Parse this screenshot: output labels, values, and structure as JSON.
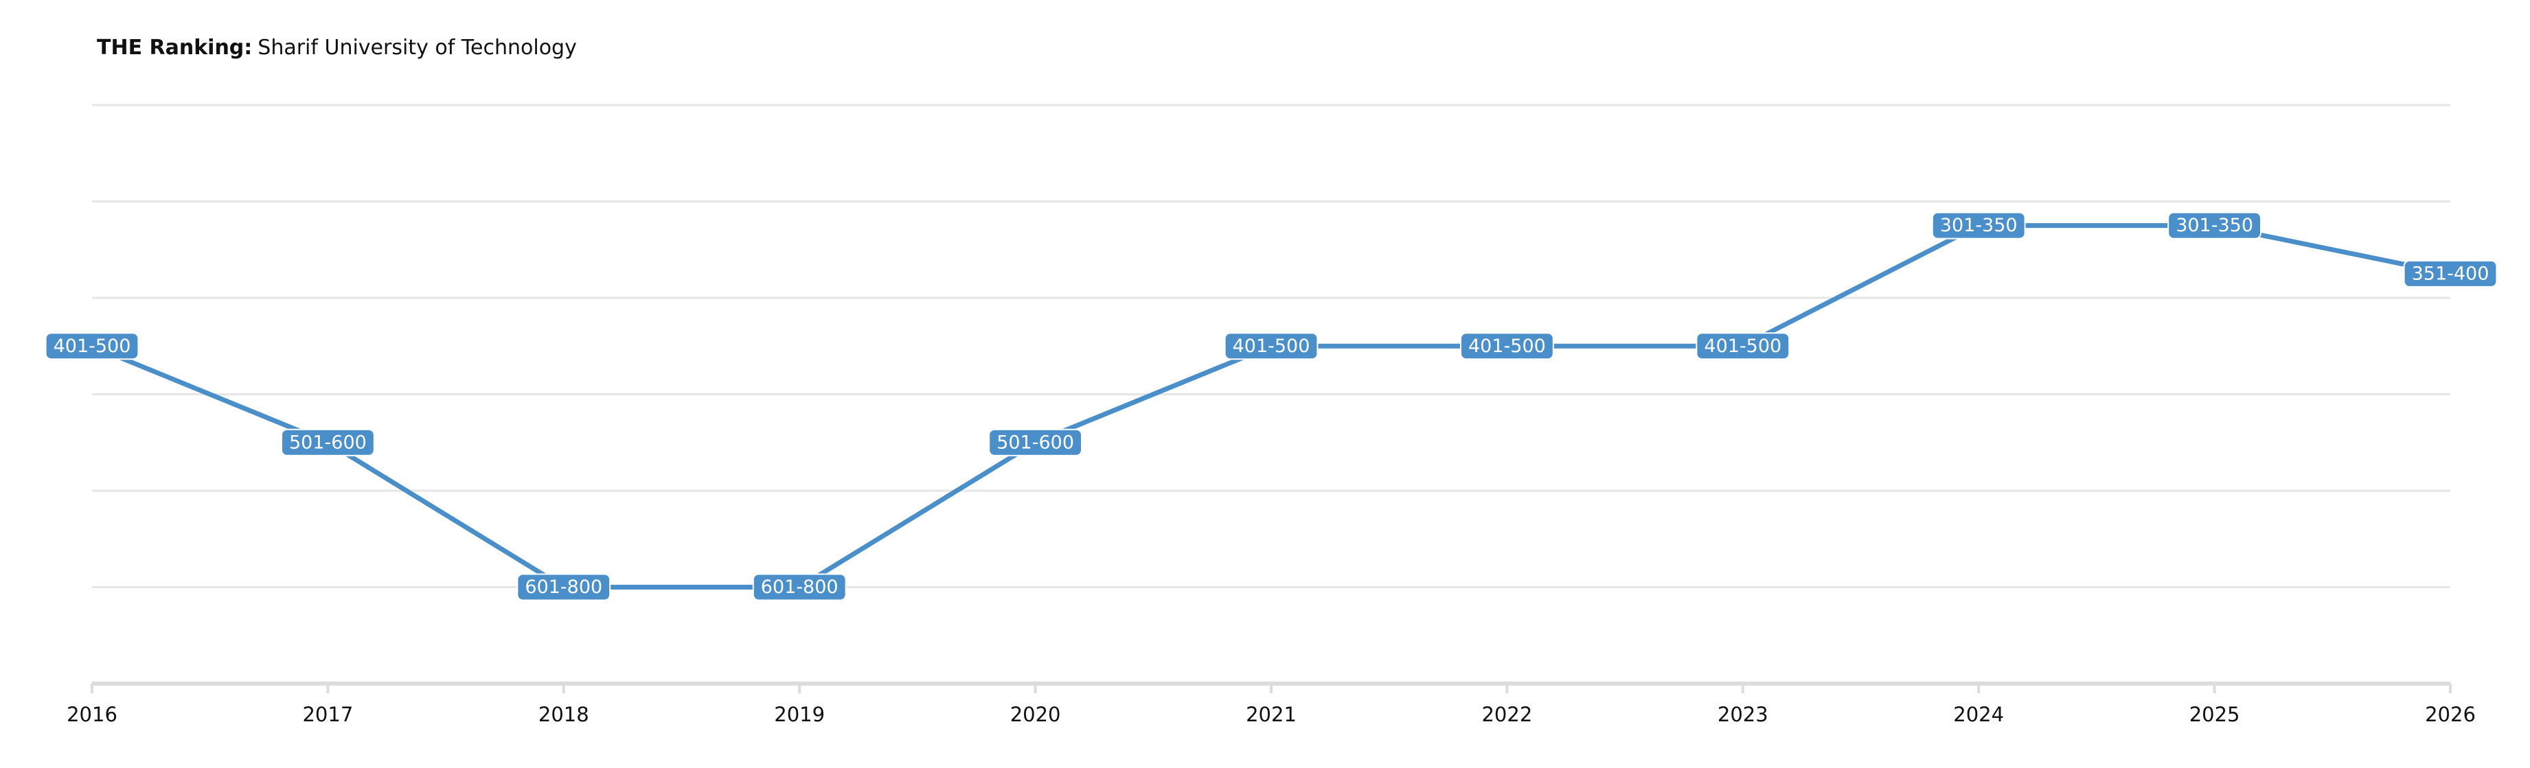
{
  "chart_data": {
    "type": "line",
    "title_prefix": "THE Ranking:",
    "title": "Sharif University of Technology",
    "x": [
      2016,
      2017,
      2018,
      2019,
      2020,
      2021,
      2022,
      2023,
      2024,
      2025,
      2026
    ],
    "series": [
      {
        "color": "#4a8fc9",
        "values": [
          450,
          550,
          700,
          700,
          550,
          450,
          450,
          450,
          325,
          325,
          375
        ],
        "value_labels": [
          "401-500",
          "501-600",
          "601-800",
          "601-800",
          "501-600",
          "401-500",
          "401-500",
          "401-500",
          "301-350",
          "301-350",
          "351-400"
        ]
      }
    ],
    "xlim": [
      2016,
      2026
    ],
    "xticks": [
      2016,
      2017,
      2018,
      2019,
      2020,
      2021,
      2022,
      2023,
      2024,
      2025,
      2026
    ],
    "ylim": [
      800,
      200
    ],
    "yticks": [
      200,
      300,
      400,
      500,
      600,
      700
    ],
    "grid": true
  }
}
